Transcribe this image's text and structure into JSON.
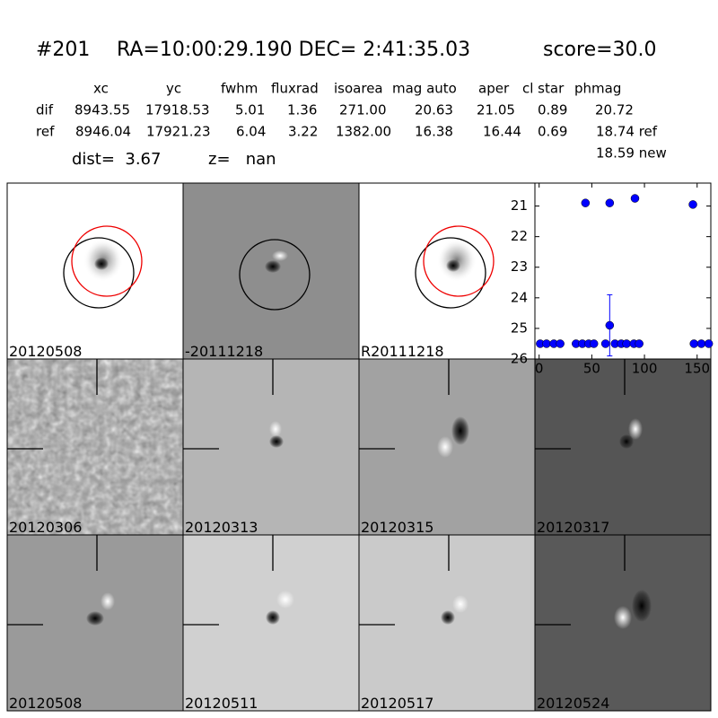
{
  "header": {
    "object_id": "#201",
    "coords": "RA=10:00:29.190 DEC= 2:41:35.03",
    "score": "score=30.0"
  },
  "table": {
    "columns": [
      "xc",
      "yc",
      "fwhm",
      "fluxrad",
      "isoarea",
      "mag auto",
      "aper",
      "cl star",
      "phmag"
    ],
    "rows": [
      [
        "dif",
        "8943.55",
        "17918.53",
        "5.01",
        "1.36",
        "271.00",
        "20.63",
        "21.05",
        "0.89",
        "20.72"
      ],
      [
        "ref",
        "8946.04",
        "17921.23",
        "6.04",
        "3.22",
        "1382.00",
        "16.38",
        "16.44",
        "0.69",
        "18.74 ref"
      ]
    ],
    "extra": "18.59 new",
    "dist": "dist=  3.67",
    "z": "z=   nan"
  },
  "panels": [
    {
      "label": "20120508"
    },
    {
      "label": "-20111218"
    },
    {
      "label": "R20111218"
    },
    {
      "label": "20120306"
    },
    {
      "label": "20120313"
    },
    {
      "label": "20120315"
    },
    {
      "label": "20120317"
    },
    {
      "label": "20120508",
      "color": "#ff0000"
    },
    {
      "label": "20120511"
    },
    {
      "label": "20120517"
    },
    {
      "label": "20120524"
    }
  ],
  "chart_data": {
    "type": "scatter",
    "color": "#0000ff",
    "x": [
      1,
      7,
      14,
      20,
      35,
      41,
      47,
      52,
      44,
      63,
      72,
      78,
      83,
      90,
      95,
      147,
      154,
      161,
      67,
      91,
      146
    ],
    "y": [
      25.5,
      25.5,
      25.5,
      25.5,
      25.5,
      25.5,
      25.5,
      25.5,
      20.9,
      25.5,
      25.5,
      25.5,
      25.5,
      25.5,
      25.5,
      25.5,
      25.5,
      25.5,
      20.9,
      20.75,
      20.95
    ],
    "errorbar": {
      "x": 67,
      "y": 24.9,
      "err": 1.0
    },
    "xlim": [
      -4,
      163
    ],
    "ylim": [
      26,
      20.25
    ],
    "xticks": [
      0,
      50,
      100,
      150
    ],
    "yticks": [
      21,
      22,
      23,
      24,
      25,
      26
    ]
  }
}
